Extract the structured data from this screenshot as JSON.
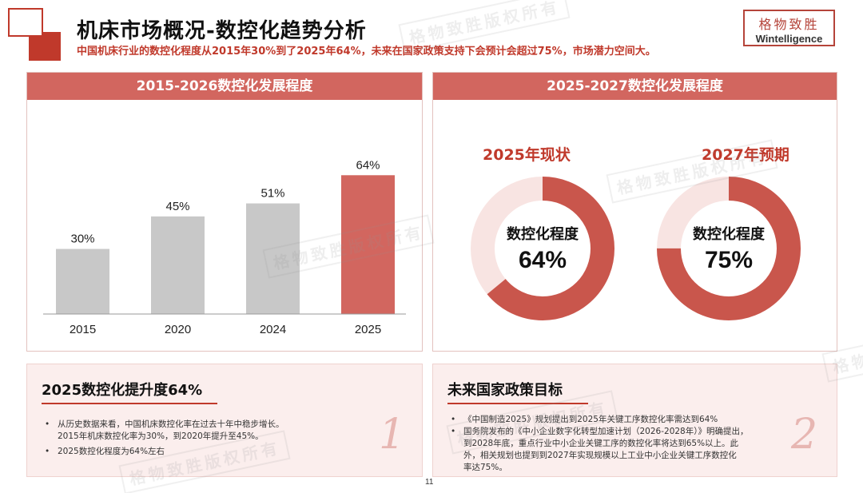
{
  "header": {
    "title": "机床市场概况-数控化趋势分析",
    "subtitle": "中国机床行业的数控化程度从2015年30%到了2025年64%，未来在国家政策支持下会预计会超过75%，市场潜力空间大。",
    "brand_cn": "格物致胜",
    "brand_en": "Wintelligence"
  },
  "left_panel": {
    "heading": "2015-2026数控化发展程度"
  },
  "chart_data": {
    "type": "bar",
    "categories": [
      "2015",
      "2020",
      "2024",
      "2025"
    ],
    "values": [
      30,
      45,
      51,
      64
    ],
    "data_labels": [
      "30%",
      "45%",
      "51%",
      "64%"
    ],
    "colors": [
      "#c8c8c8",
      "#c8c8c8",
      "#c8c8c8",
      "#d2665f"
    ],
    "title": "2015-2026数控化发展程度",
    "xlabel": "",
    "ylabel": "",
    "ylim": [
      0,
      70
    ],
    "grid": false
  },
  "right_panel": {
    "heading": "2025-2027数控化发展程度",
    "donuts": [
      {
        "title": "2025年现状",
        "center_label": "数控化程度",
        "value_text": "64%",
        "value": 64
      },
      {
        "title": "2027年预期",
        "center_label": "数控化程度",
        "value_text": "75%",
        "value": 75
      }
    ],
    "ring_color": "#c9564c",
    "track_color": "#f8e4e2"
  },
  "note_left": {
    "title": "2025数控化提升度64%",
    "number": "1",
    "bullets": [
      [
        "从历史数据来看，中国机床数控化率在过去十年中稳步增长。",
        "2015年机床数控化率为30%，到2020年提升至45%。"
      ],
      [
        "2025数控化程度为64%左右"
      ]
    ]
  },
  "note_right": {
    "title": "未来国家政策目标",
    "number": "2",
    "bullets": [
      [
        "《中国制造2025》规划提出到2025年关键工序数控化率需达到64%"
      ],
      [
        "国务院发布的《中小企业数字化转型加速计划（2026-2028年）》明确提出，",
        "到2028年底，重点行业中小企业关键工序的数控化率将达到65%以上。此",
        "外，相关规划也提到到2027年实现规模以上工业中小企业关键工序数控化",
        "率达75%。"
      ]
    ]
  },
  "page_number": "11",
  "watermark": "格物致胜版权所有",
  "accent_color": "#c0392b"
}
